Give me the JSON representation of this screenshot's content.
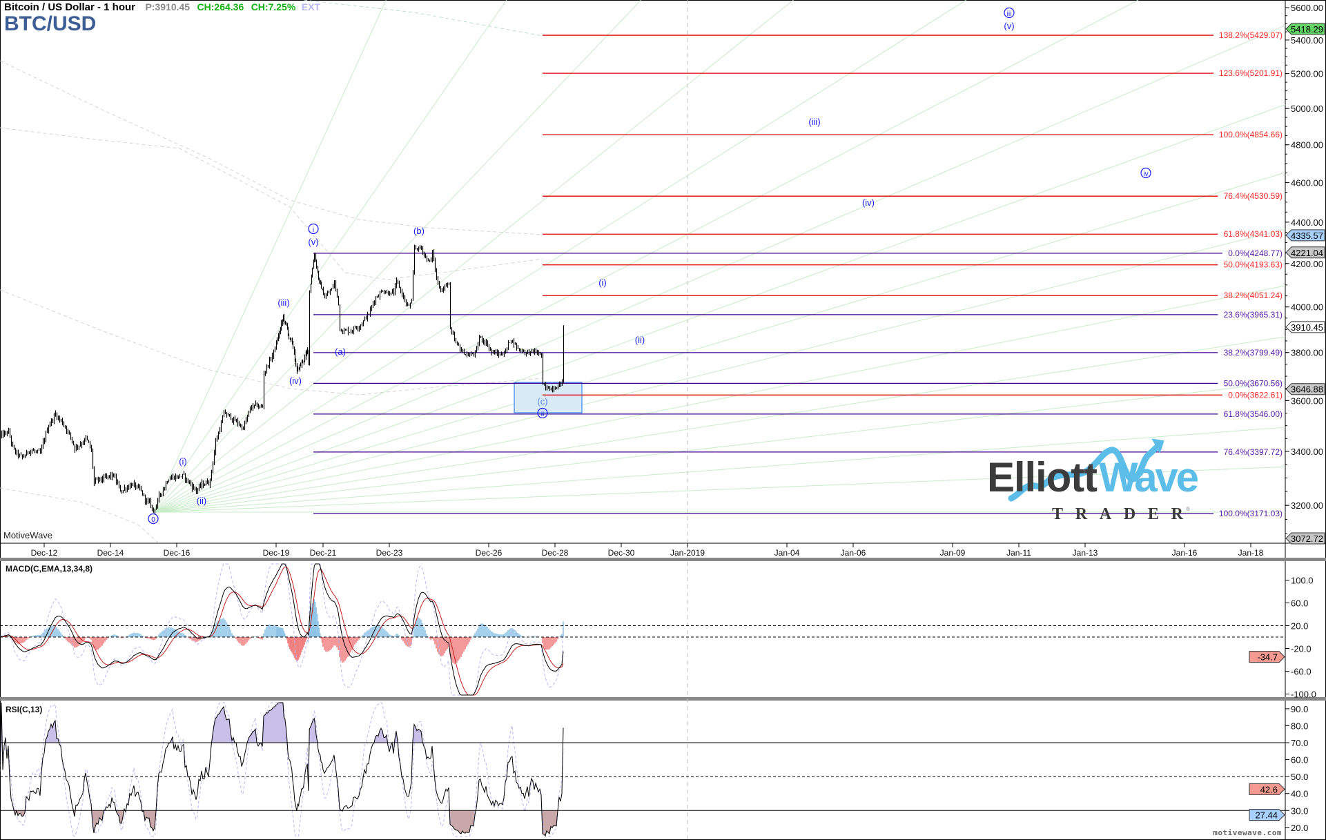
{
  "header": {
    "title": "Bitcoin / US Dollar - 1 hour",
    "symbol": "BTC/USD",
    "price": "P:3910.45",
    "change": "CH:264.36",
    "change_pct": "CH:7.25%",
    "ext": "EXT"
  },
  "watermark": "MotiveWave",
  "footer": "motivewave.com",
  "logo": {
    "main_dark": "Elliott",
    "main_light": "Wave",
    "sub": "TRADER",
    "mark": "®"
  },
  "colors": {
    "bars": "#000000",
    "fib_red": "#e00000",
    "fib_purple": "#400090",
    "wave_labels": "#1a1aff",
    "fan_lines": "#c8ecc8",
    "macd_hist_pos": "#8fc4e6",
    "macd_hist_neg": "#f08080",
    "tag_green": "#66d466",
    "tag_blue": "#a8d0ff",
    "tag_gray": "#c8c8c8",
    "tag_red": "#f59a90",
    "logo_dark": "#3c3c3c",
    "logo_blue": "#5bbde8",
    "target_box": "#d8eaf5"
  },
  "wave_labels": [
    {
      "text": "i",
      "circled": true
    },
    {
      "text": "(v)",
      "circled": false
    },
    {
      "text": "(iii)",
      "circled": false
    },
    {
      "text": "(iv)",
      "circled": false
    },
    {
      "text": "(i)",
      "circled": false
    },
    {
      "text": "(ii)",
      "circled": false
    },
    {
      "text": "0",
      "circled": true
    },
    {
      "text": "(a)",
      "circled": false
    },
    {
      "text": "(b)",
      "circled": false
    },
    {
      "text": "(c)",
      "circled": false
    },
    {
      "text": "ii",
      "circled": true
    },
    {
      "text": "(i)",
      "circled": false
    },
    {
      "text": "(ii)",
      "circled": false
    },
    {
      "text": "(iii)",
      "circled": false
    },
    {
      "text": "(iv)",
      "circled": false
    },
    {
      "text": "iii",
      "circled": true
    },
    {
      "text": "(v)",
      "circled": false
    },
    {
      "text": "iv",
      "circled": true
    }
  ],
  "chart_data": [
    {
      "type": "ohlc",
      "title": "Bitcoin / US Dollar - 1 hour",
      "y_scale": "log",
      "ylim": [
        3072.72,
        5650
      ],
      "y_ticks": [
        "5600.00",
        "5400.00",
        "5200.00",
        "5000.00",
        "4800.00",
        "4600.00",
        "4400.00",
        "4200.00",
        "4000.00",
        "3800.00",
        "3600.00",
        "3400.00",
        "3200.00"
      ],
      "x_ticks": [
        "Dec-12",
        "Dec-14",
        "Dec-16",
        "Dec-19",
        "Dec-21",
        "Dec-23",
        "Dec-26",
        "Dec-28",
        "Dec-30",
        "Jan-2019",
        "Jan-04",
        "Jan-06",
        "Jan-09",
        "Jan-11",
        "Jan-13",
        "Jan-16",
        "Jan-18"
      ],
      "last_price": 3910.45,
      "price_path": [
        [
          "Dec-10 16:00",
          3456
        ],
        [
          "Dec-10 22:00",
          3472
        ],
        [
          "Dec-11 02:00",
          3398
        ],
        [
          "Dec-11 08:00",
          3371
        ],
        [
          "Dec-11 14:00",
          3411
        ],
        [
          "Dec-11 21:00",
          3384
        ],
        [
          "Dec-12 03:00",
          3505
        ],
        [
          "Dec-12 08:00",
          3546
        ],
        [
          "Dec-12 16:00",
          3492
        ],
        [
          "Dec-12 22:00",
          3416
        ],
        [
          "Dec-13 06:00",
          3451
        ],
        [
          "Dec-13 10:00",
          3398
        ],
        [
          "Dec-13 12:00",
          3281
        ],
        [
          "Dec-14 02:00",
          3307
        ],
        [
          "Dec-14 07:00",
          3251
        ],
        [
          "Dec-14 15:00",
          3281
        ],
        [
          "Dec-14 22:00",
          3243
        ],
        [
          "Dec-15 07:00",
          3181
        ],
        [
          "Dec-15 18:00",
          3307
        ],
        [
          "Dec-16 04:00",
          3307
        ],
        [
          "Dec-16 14:00",
          3256
        ],
        [
          "Dec-17 00:00",
          3294
        ],
        [
          "Dec-17 04:00",
          3437
        ],
        [
          "Dec-17 10:00",
          3546
        ],
        [
          "Dec-17 15:00",
          3532
        ],
        [
          "Dec-18 00:00",
          3492
        ],
        [
          "Dec-18 06:00",
          3574
        ],
        [
          "Dec-18 14:00",
          3574
        ],
        [
          "Dec-18 15:00",
          3715
        ],
        [
          "Dec-18 21:00",
          3788
        ],
        [
          "Dec-19 07:00",
          3953
        ],
        [
          "Dec-19 18:00",
          3802
        ],
        [
          "Dec-19 21:00",
          3715
        ],
        [
          "Dec-20 04:00",
          3773
        ],
        [
          "Dec-20 08:00",
          3802
        ],
        [
          "Dec-20 09:00",
          3758
        ],
        [
          "Dec-20 10:00",
          4078
        ],
        [
          "Dec-20 15:00",
          4249
        ],
        [
          "Dec-20 20:00",
          4110
        ],
        [
          "Dec-21 01:00",
          4046
        ],
        [
          "Dec-21 06:00",
          4078
        ],
        [
          "Dec-21 08:00",
          4110
        ],
        [
          "Dec-21 11:00",
          4015
        ],
        [
          "Dec-21 12:00",
          3907
        ],
        [
          "Dec-21 18:00",
          3892
        ],
        [
          "Dec-22 02:00",
          3922
        ],
        [
          "Dec-22 09:00",
          3968
        ],
        [
          "Dec-22 14:00",
          4046
        ],
        [
          "Dec-22 19:00",
          4078
        ],
        [
          "Dec-23 03:00",
          4062
        ],
        [
          "Dec-23 05:00",
          4110
        ],
        [
          "Dec-23 10:00",
          4046
        ],
        [
          "Dec-23 13:00",
          3999
        ],
        [
          "Dec-23 16:00",
          4015
        ],
        [
          "Dec-23 18:00",
          4272
        ],
        [
          "Dec-23 23:00",
          4272
        ],
        [
          "Dec-24 03:00",
          4222
        ],
        [
          "Dec-24 06:00",
          4206
        ],
        [
          "Dec-24 07:00",
          4260
        ],
        [
          "Dec-24 10:00",
          4126
        ],
        [
          "Dec-24 14:00",
          4078
        ],
        [
          "Dec-24 19:00",
          4110
        ],
        [
          "Dec-24 20:00",
          3892
        ],
        [
          "Dec-25 00:00",
          3832
        ],
        [
          "Dec-25 05:00",
          3802
        ],
        [
          "Dec-25 10:00",
          3788
        ],
        [
          "Dec-25 15:00",
          3802
        ],
        [
          "Dec-25 17:00",
          3862
        ],
        [
          "Dec-25 22:00",
          3847
        ],
        [
          "Dec-26 02:00",
          3802
        ],
        [
          "Dec-26 08:00",
          3788
        ],
        [
          "Dec-26 13:00",
          3817
        ],
        [
          "Dec-26 16:00",
          3862
        ],
        [
          "Dec-26 21:00",
          3817
        ],
        [
          "Dec-27 04:00",
          3802
        ],
        [
          "Dec-27 12:00",
          3797
        ],
        [
          "Dec-27 14:00",
          3788
        ],
        [
          "Dec-27 15:00",
          3658
        ],
        [
          "Dec-27 17:00",
          3644
        ],
        [
          "Dec-27 22:00",
          3658
        ],
        [
          "Dec-28 03:00",
          3672
        ],
        [
          "Dec-28 05:00",
          3672
        ],
        [
          "Dec-28 06:00",
          3910.45
        ]
      ],
      "fib_levels": [
        {
          "label": "138.2%(5429.07)",
          "price": 5429.07,
          "color": "red"
        },
        {
          "label": "123.6%(5201.91)",
          "price": 5201.91,
          "color": "red"
        },
        {
          "label": "100.0%(4854.66)",
          "price": 4854.66,
          "color": "red"
        },
        {
          "label": "76.4%(4530.59)",
          "price": 4530.59,
          "color": "red"
        },
        {
          "label": "61.8%(4341.03)",
          "price": 4341.03,
          "color": "red"
        },
        {
          "label": "0.0%(4248.77)",
          "price": 4248.77,
          "color": "purple"
        },
        {
          "label": "50.0%(4193.63)",
          "price": 4193.63,
          "color": "red"
        },
        {
          "label": "38.2%(4051.24)",
          "price": 4051.24,
          "color": "red"
        },
        {
          "label": "23.6%(3965.31)",
          "price": 3965.31,
          "color": "purple"
        },
        {
          "label": "38.2%(3799.49)",
          "price": 3799.49,
          "color": "purple"
        },
        {
          "label": "50.0%(3670.56)",
          "price": 3670.56,
          "color": "purple"
        },
        {
          "label": "0.0%(3622.61)",
          "price": 3622.61,
          "color": "red"
        },
        {
          "label": "61.8%(3546.00)",
          "price": 3546.0,
          "color": "purple"
        },
        {
          "label": "76.4%(3397.72)",
          "price": 3397.72,
          "color": "purple"
        },
        {
          "label": "100.0%(3171.03)",
          "price": 3171.03,
          "color": "purple"
        }
      ],
      "price_tags": [
        {
          "value": "5418.29",
          "color": "green"
        },
        {
          "value": "4335.57",
          "color": "blue"
        },
        {
          "value": "4221.04",
          "color": "gray"
        },
        {
          "value": "3910.45",
          "color": "white"
        },
        {
          "value": "3646.88",
          "color": "gray"
        },
        {
          "value": "3072.72",
          "color": "gray"
        }
      ],
      "vertical_marker": "Jan-2019"
    },
    {
      "type": "line",
      "title": "MACD(C,EMA,13,34,8)",
      "params": {
        "fast": 13,
        "slow": 34,
        "signal": 8
      },
      "ylim": [
        -110,
        115
      ],
      "y_ticks": [
        "100.0",
        "60.0",
        "20.0",
        "-20.0",
        "-60.0",
        "-100.0"
      ],
      "reference_lines": [
        20,
        0
      ],
      "last_value_tag": {
        "value": "-34.7",
        "color": "red"
      }
    },
    {
      "type": "line",
      "title": "RSI(C,13)",
      "params": {
        "period": 13
      },
      "ylim": [
        15,
        95
      ],
      "y_ticks": [
        "90.0",
        "80.0",
        "70.0",
        "60.0",
        "50.0",
        "40.0",
        "30.0",
        "20.0"
      ],
      "reference_lines": [
        70,
        50,
        30
      ],
      "last_value_tags": [
        {
          "value": "42.6",
          "color": "red"
        },
        {
          "value": "27.44",
          "color": "blue"
        }
      ]
    }
  ]
}
